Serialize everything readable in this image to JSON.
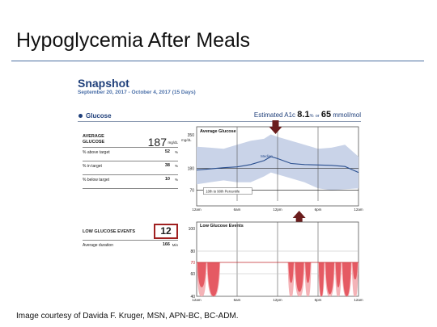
{
  "slide": {
    "title": "Hypoglycemia After Meals",
    "caption": "Image courtesy of Davida F. Kruger, MSN, APN-BC, BC-ADM."
  },
  "report": {
    "title": "Snapshot",
    "date_range": "September 20, 2017 - October 4, 2017 (15 Days)",
    "section_label": "Glucose",
    "a1c": {
      "label": "Estimated A1c",
      "percent": "8.1",
      "percent_unit": "%",
      "or": "or",
      "mmol": "65",
      "mmol_unit": "mmol/mol"
    },
    "stats": {
      "avg_label_1": "AVERAGE",
      "avg_label_2": "GLUCOSE",
      "avg_value": "187",
      "avg_unit": "mg/dL",
      "rows": [
        {
          "label": "% above target",
          "value": "52",
          "unit": "%"
        },
        {
          "label": "% in target",
          "value": "38",
          "unit": "%"
        },
        {
          "label": "% below target",
          "value": "10",
          "unit": "%"
        }
      ]
    },
    "low_events": {
      "label": "LOW GLUCOSE EVENTS",
      "count": "12",
      "duration_label": "Average duration",
      "duration_value": "166",
      "duration_unit": "Min"
    }
  },
  "chart_data": [
    {
      "type": "area",
      "title": "Average Glucose",
      "ylabel": "mg/dL",
      "x_ticks": [
        "12am",
        "6am",
        "12pm",
        "6pm",
        "12am"
      ],
      "y_ticks": [
        70,
        180,
        350
      ],
      "x": [
        0,
        2,
        4,
        6,
        8,
        10,
        11,
        12,
        14,
        16,
        18,
        20,
        22,
        24
      ],
      "ylim": [
        40,
        350
      ],
      "xlim": [
        0,
        24
      ],
      "series": [
        {
          "name": "Median",
          "values": [
            172,
            178,
            184,
            188,
            200,
            220,
            240,
            230,
            205,
            200,
            198,
            196,
            190,
            160
          ]
        },
        {
          "name": "10th to 90th Percentile",
          "upper": [
            290,
            285,
            280,
            300,
            320,
            330,
            352,
            340,
            320,
            300,
            280,
            285,
            300,
            240
          ],
          "lower": [
            100,
            110,
            120,
            110,
            110,
            140,
            160,
            150,
            130,
            110,
            80,
            70,
            75,
            80
          ]
        }
      ],
      "target_lines": [
        70,
        180
      ],
      "annotations": [
        "Median",
        "10th to 90th Percentile"
      ],
      "colors": {
        "band": "#c9d3e8",
        "median": "#2a4f8f",
        "arrow": "#6b1d1d"
      }
    },
    {
      "type": "area",
      "title": "Low Glucose Events",
      "x_ticks": [
        "12am",
        "6am",
        "12pm",
        "6pm",
        "12am"
      ],
      "y_ticks": [
        40,
        60,
        70,
        80,
        100
      ],
      "ylim": [
        40,
        100
      ],
      "xlim": [
        0,
        24
      ],
      "threshold": 70,
      "events": [
        {
          "start": 0,
          "end": 1.5,
          "min": 48
        },
        {
          "start": 1.5,
          "end": 3.5,
          "min": 40
        },
        {
          "start": 13.5,
          "end": 14.5,
          "min": 52
        },
        {
          "start": 14.5,
          "end": 16,
          "min": 44
        },
        {
          "start": 16,
          "end": 17,
          "min": 52
        },
        {
          "start": 18,
          "end": 19,
          "min": 40
        },
        {
          "start": 19,
          "end": 20.5,
          "min": 42
        },
        {
          "start": 20.5,
          "end": 21.5,
          "min": 48
        },
        {
          "start": 21.5,
          "end": 23,
          "min": 40
        },
        {
          "start": 23,
          "end": 24,
          "min": 55
        }
      ],
      "colors": {
        "fill": "#e55a63",
        "fill_light": "#f4b3b7",
        "threshold": "#c0282e"
      }
    }
  ]
}
